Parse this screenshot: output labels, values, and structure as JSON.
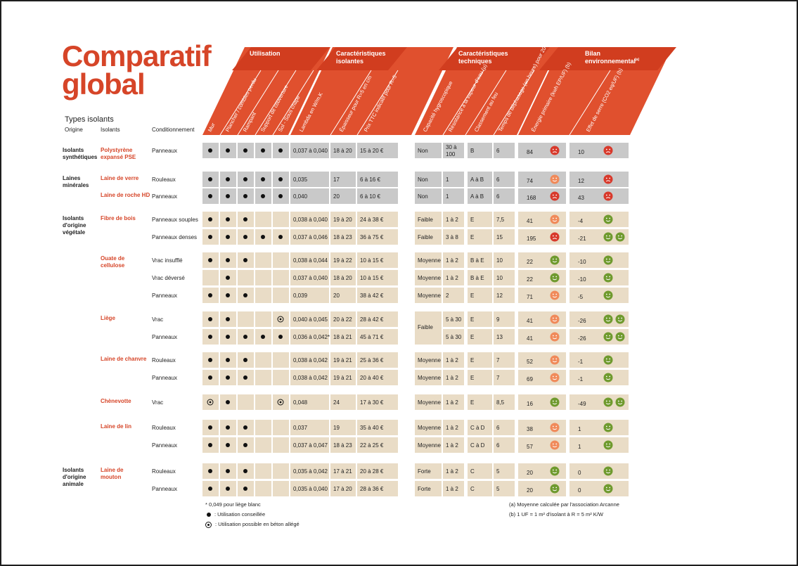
{
  "title": [
    "Comparatif",
    "global"
  ],
  "types_label": "Types isolants",
  "col_origine": "Origine",
  "col_isolants": "Isolants",
  "col_conditionnement": "Conditionnement",
  "groups": [
    {
      "title": "Utilisation"
    },
    {
      "title": "Caractéristiques isolantes"
    },
    {
      "title": "Caractéristiques techniques"
    },
    {
      "title": "Bilan environnemental(a)"
    }
  ],
  "headers": [
    "Mur",
    "Plancher / combles perdu",
    "Rampant",
    "Support de couverture",
    "Sol - Sous chape",
    "Lambda en W/m.K",
    "Épaisseur pour R=5 en cm",
    "Prix TTC indicatif pour R=5",
    "Capacité hygroscopique",
    "Résistance à la vapeur d'eau (µ)",
    "Classement au feu",
    "Temps de déphasage (en heure) pour 20 cm",
    "Énergie primaire (kwh EP/UF) (b)",
    "Effet de serre (CO2 eq/UF) (b)"
  ],
  "origins": [
    {
      "label": "Isolants synthétiques"
    },
    {
      "label": "Laines minérales"
    },
    {
      "label": "Isolants d'origine végétale"
    },
    {
      "label": "Isolants d'origine animale"
    }
  ],
  "materials": [
    {
      "label": "Polystyrène expansé PSE"
    },
    {
      "label": "Laine de verre"
    },
    {
      "label": "Laine de roche HD"
    },
    {
      "label": "Fibre de bois"
    },
    {
      "label": "Ouate de cellulose"
    },
    {
      "label": "Liège"
    },
    {
      "label": "Laine de chanvre"
    },
    {
      "label": "Chènevotte"
    },
    {
      "label": "Laine de lin"
    },
    {
      "label": "Laine de mouton"
    }
  ],
  "rows": [
    {
      "cond": "Panneaux",
      "u": [
        "x",
        "x",
        "x",
        "x",
        "x"
      ],
      "lambda": "0,037 à 0,040",
      "ep": "18 à 20",
      "prix": "15 à 20 €",
      "hygro": "Non",
      "mu": "30 à 100",
      "feu": "B",
      "deph": "6",
      "ep_val": "84",
      "ep_face": "bad",
      "ges": "10",
      "ges_face": [
        "bad"
      ]
    },
    {
      "cond": "Rouleaux",
      "u": [
        "x",
        "x",
        "x",
        "x",
        "x"
      ],
      "lambda": "0,035",
      "ep": "17",
      "prix": "6 à 16 €",
      "hygro": "Non",
      "mu": "1",
      "feu": "A à B",
      "deph": "6",
      "ep_val": "74",
      "ep_face": "mid",
      "ges": "12",
      "ges_face": [
        "bad"
      ]
    },
    {
      "cond": "Panneaux",
      "u": [
        "x",
        "x",
        "x",
        "x",
        "x"
      ],
      "lambda": "0,040",
      "ep": "20",
      "prix": "6 à 10 €",
      "hygro": "Non",
      "mu": "1",
      "feu": "A à B",
      "deph": "6",
      "ep_val": "168",
      "ep_face": "bad",
      "ges": "43",
      "ges_face": [
        "bad"
      ]
    },
    {
      "cond": "Panneaux souples",
      "u": [
        "x",
        "x",
        "x",
        "",
        ""
      ],
      "lambda": "0,038 à 0,040",
      "ep": "19 à 20",
      "prix": "24 à 38 €",
      "hygro": "Faible",
      "mu": "1 à 2",
      "feu": "E",
      "deph": "7,5",
      "ep_val": "41",
      "ep_face": "mid",
      "ges": "-4",
      "ges_face": [
        "good"
      ]
    },
    {
      "cond": "Panneaux denses",
      "u": [
        "x",
        "x",
        "x",
        "x",
        "x"
      ],
      "lambda": "0,037 à 0,046",
      "ep": "18 à 23",
      "prix": "36 à 75 €",
      "hygro": "Faible",
      "mu": "3 à 8",
      "feu": "E",
      "deph": "15",
      "ep_val": "195",
      "ep_face": "bad",
      "ges": "-21",
      "ges_face": [
        "good",
        "good"
      ]
    },
    {
      "cond": "Vrac insufflé",
      "u": [
        "x",
        "x",
        "x",
        "",
        ""
      ],
      "lambda": "0,038 à 0,044",
      "ep": "19 à 22",
      "prix": "10 à 15 €",
      "hygro": "Moyenne",
      "mu": "1 à 2",
      "feu": "B à E",
      "deph": "10",
      "ep_val": "22",
      "ep_face": "good",
      "ges": "-10",
      "ges_face": [
        "good"
      ]
    },
    {
      "cond": "Vrac déversé",
      "u": [
        "",
        "x",
        "",
        "",
        ""
      ],
      "lambda": "0,037 à 0,040",
      "ep": "18 à 20",
      "prix": "10 à 15 €",
      "hygro": "Moyenne",
      "mu": "1 à 2",
      "feu": "B à E",
      "deph": "10",
      "ep_val": "22",
      "ep_face": "good",
      "ges": "-10",
      "ges_face": [
        "good"
      ]
    },
    {
      "cond": "Panneaux",
      "u": [
        "x",
        "x",
        "x",
        "",
        ""
      ],
      "lambda": "0,039",
      "ep": "20",
      "prix": "38 à 42 €",
      "hygro": "Moyenne",
      "mu": "2",
      "feu": "E",
      "deph": "12",
      "ep_val": "71",
      "ep_face": "mid",
      "ges": "-5",
      "ges_face": [
        "good"
      ]
    },
    {
      "cond": "Vrac",
      "u": [
        "x",
        "x",
        "",
        "",
        "o"
      ],
      "lambda": "0,040 à 0,045",
      "ep": "20 à 22",
      "prix": "28 à 42 €",
      "hygro": "",
      "mu": "5 à 30",
      "feu": "E",
      "deph": "9",
      "ep_val": "41",
      "ep_face": "mid",
      "ges": "-26",
      "ges_face": [
        "good",
        "good"
      ]
    },
    {
      "cond": "Panneaux",
      "u": [
        "x",
        "x",
        "x",
        "x",
        "x"
      ],
      "lambda": "0,036 à 0,042*",
      "ep": "18 à 21",
      "prix": "45 à 71 €",
      "hygro": "",
      "mu": "5 à 30",
      "feu": "E",
      "deph": "13",
      "ep_val": "41",
      "ep_face": "mid",
      "ges": "-26",
      "ges_face": [
        "good",
        "good"
      ]
    },
    {
      "cond": "Rouleaux",
      "u": [
        "x",
        "x",
        "x",
        "",
        ""
      ],
      "lambda": "0,038 à 0,042",
      "ep": "19 à 21",
      "prix": "25 à 36 €",
      "hygro": "Moyenne",
      "mu": "1 à 2",
      "feu": "E",
      "deph": "7",
      "ep_val": "52",
      "ep_face": "mid",
      "ges": "-1",
      "ges_face": [
        "good"
      ]
    },
    {
      "cond": "Panneaux",
      "u": [
        "x",
        "x",
        "x",
        "",
        ""
      ],
      "lambda": "0,038 à 0,042",
      "ep": "19 à 21",
      "prix": "20 à 40 €",
      "hygro": "Moyenne",
      "mu": "1 à 2",
      "feu": "E",
      "deph": "7",
      "ep_val": "69",
      "ep_face": "mid",
      "ges": "-1",
      "ges_face": [
        "good"
      ]
    },
    {
      "cond": "Vrac",
      "u": [
        "o",
        "x",
        "",
        "",
        "o"
      ],
      "lambda": "0,048",
      "ep": "24",
      "prix": "17 à 30 €",
      "hygro": "Moyenne",
      "mu": "1 à 2",
      "feu": "E",
      "deph": "8,5",
      "ep_val": "16",
      "ep_face": "good",
      "ges": "-49",
      "ges_face": [
        "good",
        "good"
      ]
    },
    {
      "cond": "Rouleaux",
      "u": [
        "x",
        "x",
        "x",
        "",
        ""
      ],
      "lambda": "0,037",
      "ep": "19",
      "prix": "35 à 40 €",
      "hygro": "Moyenne",
      "mu": "1 à 2",
      "feu": "C à D",
      "deph": "6",
      "ep_val": "38",
      "ep_face": "mid",
      "ges": "1",
      "ges_face": [
        "good"
      ]
    },
    {
      "cond": "Panneaux",
      "u": [
        "x",
        "x",
        "x",
        "",
        ""
      ],
      "lambda": "0,037 à 0,047",
      "ep": "18 à 23",
      "prix": "22 à 25 €",
      "hygro": "Moyenne",
      "mu": "1 à 2",
      "feu": "C à D",
      "deph": "6",
      "ep_val": "57",
      "ep_face": "mid",
      "ges": "1",
      "ges_face": [
        "good"
      ]
    },
    {
      "cond": "Rouleaux",
      "u": [
        "x",
        "x",
        "x",
        "",
        ""
      ],
      "lambda": "0,035 à 0,042",
      "ep": "17 à 21",
      "prix": "20 à 28 €",
      "hygro": "Forte",
      "mu": "1 à 2",
      "feu": "C",
      "deph": "5",
      "ep_val": "20",
      "ep_face": "good",
      "ges": "0",
      "ges_face": [
        "good"
      ]
    },
    {
      "cond": "Panneaux",
      "u": [
        "x",
        "x",
        "x",
        "",
        ""
      ],
      "lambda": "0,035 à 0,040",
      "ep": "17 à 20",
      "prix": "28 à 36 €",
      "hygro": "Forte",
      "mu": "1 à 2",
      "feu": "C",
      "deph": "5",
      "ep_val": "20",
      "ep_face": "good",
      "ges": "0",
      "ges_face": [
        "good"
      ]
    }
  ],
  "liege_hygro": "Faible",
  "footnotes": {
    "star": "* 0,049 pour liège blanc",
    "dot": ": Utilisation conseillée",
    "circle": ": Utilisation possible en béton allégé",
    "a": "(a) Moyenne calculée par l'association Arcanne",
    "b": "(b) 1 UF = 1 m² d'isolant à R = 5 m² K/W"
  },
  "colors": {
    "accent": "#d64528",
    "header_red": "#e0502e",
    "grey": "#c9c9c9",
    "beige": "#e9dcc6",
    "face_good": "#6f9a2e",
    "face_mid": "#f08a5a",
    "face_bad": "#d8392b"
  }
}
